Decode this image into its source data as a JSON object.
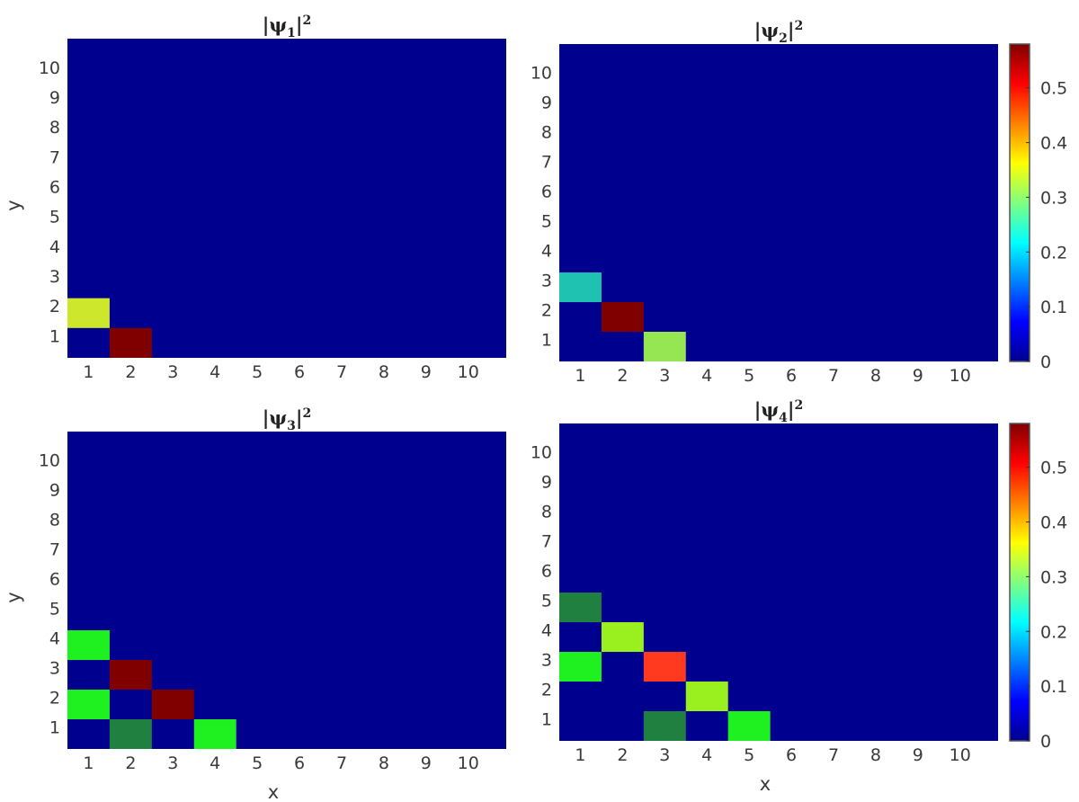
{
  "colors": {
    "background": "#00008f",
    "colormap": [
      "#00008f",
      "#0000ff",
      "#00ffff",
      "#80ff80",
      "#ffff00",
      "#ff0000",
      "#800000"
    ]
  },
  "colorbar": {
    "ticks": [
      "0",
      "0.1",
      "0.2",
      "0.3",
      "0.4",
      "0.5"
    ],
    "tick_values": [
      0,
      0.1,
      0.2,
      0.3,
      0.4,
      0.5
    ],
    "max": 0.58
  },
  "chart_data": [
    {
      "type": "heatmap",
      "title_main": "|ψ",
      "title_sub": "1",
      "title_tail": "|",
      "title_sup": "2",
      "xlabel": "",
      "ylabel": "y",
      "x_ticks": [
        "1",
        "2",
        "3",
        "4",
        "5",
        "6",
        "7",
        "8",
        "9",
        "10"
      ],
      "y_ticks": [
        "1",
        "2",
        "3",
        "4",
        "5",
        "6",
        "7",
        "8",
        "9",
        "10"
      ],
      "colorbar": false,
      "cells": [
        {
          "x": 1,
          "y": 2,
          "color": "#cde82c"
        },
        {
          "x": 2,
          "y": 1,
          "color": "#800000"
        }
      ]
    },
    {
      "type": "heatmap",
      "title_main": "|ψ",
      "title_sub": "2",
      "title_tail": "|",
      "title_sup": "2",
      "xlabel": "",
      "ylabel": "",
      "x_ticks": [
        "1",
        "2",
        "3",
        "4",
        "5",
        "6",
        "7",
        "8",
        "9",
        "10"
      ],
      "y_ticks": [
        "1",
        "2",
        "3",
        "4",
        "5",
        "6",
        "7",
        "8",
        "9",
        "10"
      ],
      "colorbar": true,
      "cells": [
        {
          "x": 1,
          "y": 3,
          "color": "#1fc1b0"
        },
        {
          "x": 2,
          "y": 2,
          "color": "#800000"
        },
        {
          "x": 3,
          "y": 1,
          "color": "#96e653"
        }
      ]
    },
    {
      "type": "heatmap",
      "title_main": "|ψ",
      "title_sub": "3",
      "title_tail": "|",
      "title_sup": "2",
      "xlabel": "x",
      "ylabel": "y",
      "x_ticks": [
        "1",
        "2",
        "3",
        "4",
        "5",
        "6",
        "7",
        "8",
        "9",
        "10"
      ],
      "y_ticks": [
        "1",
        "2",
        "3",
        "4",
        "5",
        "6",
        "7",
        "8",
        "9",
        "10"
      ],
      "colorbar": false,
      "cells": [
        {
          "x": 1,
          "y": 4,
          "color": "#1ff01f"
        },
        {
          "x": 2,
          "y": 3,
          "color": "#800000"
        },
        {
          "x": 1,
          "y": 2,
          "color": "#1ff01f"
        },
        {
          "x": 3,
          "y": 2,
          "color": "#800000"
        },
        {
          "x": 2,
          "y": 1,
          "color": "#1f8040"
        },
        {
          "x": 4,
          "y": 1,
          "color": "#1ff01f"
        }
      ]
    },
    {
      "type": "heatmap",
      "title_main": "|ψ",
      "title_sub": "4",
      "title_tail": "|",
      "title_sup": "2",
      "xlabel": "x",
      "ylabel": "",
      "x_ticks": [
        "1",
        "2",
        "3",
        "4",
        "5",
        "6",
        "7",
        "8",
        "9",
        "10"
      ],
      "y_ticks": [
        "1",
        "2",
        "3",
        "4",
        "5",
        "6",
        "7",
        "8",
        "9",
        "10"
      ],
      "colorbar": true,
      "cells": [
        {
          "x": 1,
          "y": 5,
          "color": "#1f8040"
        },
        {
          "x": 2,
          "y": 4,
          "color": "#9af01f"
        },
        {
          "x": 1,
          "y": 3,
          "color": "#1ff01f"
        },
        {
          "x": 3,
          "y": 3,
          "color": "#ff3a1f"
        },
        {
          "x": 4,
          "y": 2,
          "color": "#9af01f"
        },
        {
          "x": 3,
          "y": 1,
          "color": "#1f8040"
        },
        {
          "x": 5,
          "y": 1,
          "color": "#1ff01f"
        }
      ]
    }
  ]
}
